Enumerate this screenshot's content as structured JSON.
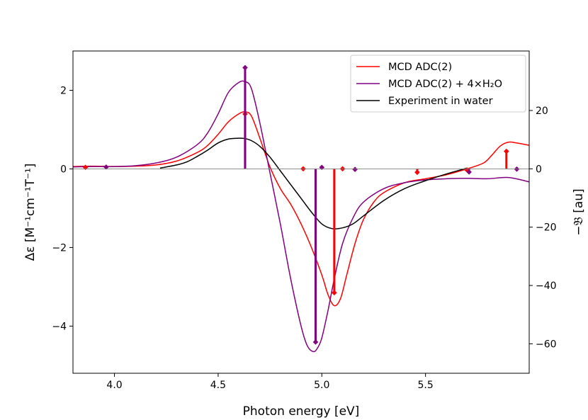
{
  "chart_data": {
    "type": "line",
    "xlabel": "Photon energy [eV]",
    "ylabel_left": "Δε [M⁻¹cm⁻¹T⁻¹]",
    "ylabel_right": "−𝔅 [au]",
    "xlim": [
      3.8,
      6.0
    ],
    "ylim_left": [
      -5.2,
      3.0
    ],
    "ylim_right": [
      -70.1,
      40.4
    ],
    "x_ticks": [
      4.0,
      4.5,
      5.0,
      5.5
    ],
    "x_tick_labels": [
      "4.0",
      "4.5",
      "5.0",
      "5.5"
    ],
    "y_left_ticks": [
      2,
      0,
      -2,
      -4
    ],
    "y_left_tick_labels": [
      "2",
      "0",
      "−2",
      "−4"
    ],
    "y_right_ticks": [
      20,
      0,
      -20,
      -40,
      -60
    ],
    "y_right_tick_labels": [
      "20",
      "0",
      "−20",
      "−40",
      "−60"
    ],
    "legend_position": "top-right",
    "series": [
      {
        "name": "MCD ADC(2)",
        "color": "#ff0000",
        "axis": "left",
        "x": [
          3.8,
          3.9,
          4.0,
          4.1,
          4.2,
          4.3,
          4.4,
          4.45,
          4.5,
          4.55,
          4.6,
          4.63,
          4.66,
          4.7,
          4.75,
          4.8,
          4.85,
          4.9,
          4.95,
          5.0,
          5.03,
          5.06,
          5.09,
          5.12,
          5.16,
          5.2,
          5.25,
          5.3,
          5.4,
          5.5,
          5.6,
          5.7,
          5.78,
          5.82,
          5.86,
          5.9,
          5.94,
          6.0
        ],
        "y": [
          0.06,
          0.07,
          0.06,
          0.07,
          0.1,
          0.2,
          0.42,
          0.6,
          0.88,
          1.2,
          1.4,
          1.45,
          1.35,
          0.8,
          0.05,
          -0.5,
          -0.9,
          -1.4,
          -2.0,
          -2.7,
          -3.2,
          -3.48,
          -3.3,
          -2.7,
          -1.9,
          -1.3,
          -0.85,
          -0.6,
          -0.35,
          -0.25,
          -0.15,
          0.0,
          0.15,
          0.35,
          0.58,
          0.68,
          0.66,
          0.6
        ]
      },
      {
        "name": "MCD ADC(2) + 4×H₂O",
        "color": "#800080",
        "axis": "left",
        "x": [
          3.8,
          3.9,
          4.0,
          4.1,
          4.2,
          4.3,
          4.4,
          4.45,
          4.5,
          4.55,
          4.6,
          4.63,
          4.66,
          4.7,
          4.75,
          4.8,
          4.85,
          4.9,
          4.93,
          4.96,
          4.98,
          5.0,
          5.03,
          5.06,
          5.1,
          5.15,
          5.2,
          5.3,
          5.4,
          5.5,
          5.6,
          5.7,
          5.8,
          5.9,
          6.0
        ],
        "y": [
          0.05,
          0.06,
          0.06,
          0.08,
          0.15,
          0.3,
          0.62,
          0.92,
          1.4,
          1.95,
          2.2,
          2.22,
          2.05,
          1.2,
          -0.1,
          -1.4,
          -2.8,
          -4.0,
          -4.5,
          -4.65,
          -4.55,
          -4.3,
          -3.6,
          -2.8,
          -1.9,
          -1.25,
          -0.85,
          -0.5,
          -0.35,
          -0.28,
          -0.25,
          -0.24,
          -0.25,
          -0.22,
          -0.33
        ]
      },
      {
        "name": "Experiment in water",
        "color": "#000000",
        "axis": "left",
        "x": [
          4.22,
          4.3,
          4.35,
          4.4,
          4.45,
          4.5,
          4.55,
          4.6,
          4.63,
          4.66,
          4.7,
          4.75,
          4.8,
          4.85,
          4.9,
          4.95,
          5.0,
          5.05,
          5.1,
          5.15,
          5.2,
          5.3,
          5.4,
          5.5,
          5.6,
          5.7
        ],
        "y": [
          0.02,
          0.1,
          0.18,
          0.32,
          0.48,
          0.66,
          0.76,
          0.78,
          0.77,
          0.72,
          0.58,
          0.3,
          -0.05,
          -0.4,
          -0.75,
          -1.1,
          -1.4,
          -1.52,
          -1.5,
          -1.4,
          -1.2,
          -0.8,
          -0.5,
          -0.3,
          -0.13,
          0.02
        ]
      }
    ],
    "sticks": [
      {
        "series": "MCD ADC(2)",
        "color": "#ff0000",
        "axis": "right",
        "x": [
          3.86,
          4.63,
          4.91,
          5.06,
          5.1,
          5.46,
          5.7,
          5.89
        ],
        "y": [
          0.5,
          18.8,
          0.0,
          -42.5,
          0.0,
          -1.2,
          -0.4,
          6.0
        ]
      },
      {
        "series": "MCD ADC(2) + 4×H₂O",
        "color": "#800080",
        "axis": "right",
        "x": [
          3.96,
          4.63,
          4.97,
          5.0,
          5.16,
          5.71,
          5.94
        ],
        "y": [
          0.6,
          34.7,
          -59.4,
          0.5,
          -0.2,
          -1.1,
          -0.1
        ]
      }
    ]
  }
}
